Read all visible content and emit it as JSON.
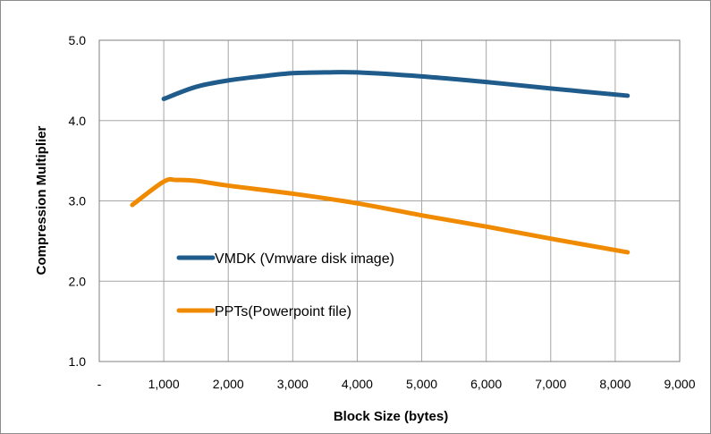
{
  "chart_data": {
    "type": "line",
    "title": "",
    "xlabel": "Block Size (bytes)",
    "ylabel": "Compression Multiplier",
    "xlim": [
      0,
      9000
    ],
    "ylim": [
      1.0,
      5.0
    ],
    "x_ticks": [
      0,
      1000,
      2000,
      3000,
      4000,
      5000,
      6000,
      7000,
      8000,
      9000
    ],
    "x_tick_labels": [
      "-",
      "1,000",
      "2,000",
      "3,000",
      "4,000",
      "5,000",
      "6,000",
      "7,000",
      "8,000",
      "9,000"
    ],
    "y_ticks": [
      1.0,
      2.0,
      3.0,
      4.0,
      5.0
    ],
    "y_tick_labels": [
      "1.0",
      "2.0",
      "3.0",
      "4.0",
      "5.0"
    ],
    "grid": true,
    "legend_position": "inside-left",
    "series": [
      {
        "name": "VMDK (Vmware disk image)",
        "color": "#1f5c8b",
        "x": [
          1000,
          1500,
          2000,
          2500,
          3000,
          3500,
          4000,
          5000,
          6000,
          7000,
          8192
        ],
        "y": [
          4.27,
          4.42,
          4.5,
          4.55,
          4.59,
          4.6,
          4.6,
          4.55,
          4.48,
          4.4,
          4.31
        ]
      },
      {
        "name": "PPTs(Powerpoint file)",
        "color": "#f08a00",
        "x": [
          512,
          1000,
          1200,
          1500,
          2000,
          3000,
          4000,
          5000,
          6000,
          7000,
          8192
        ],
        "y": [
          2.95,
          3.24,
          3.26,
          3.25,
          3.19,
          3.09,
          2.97,
          2.82,
          2.68,
          2.53,
          2.36
        ]
      }
    ]
  }
}
